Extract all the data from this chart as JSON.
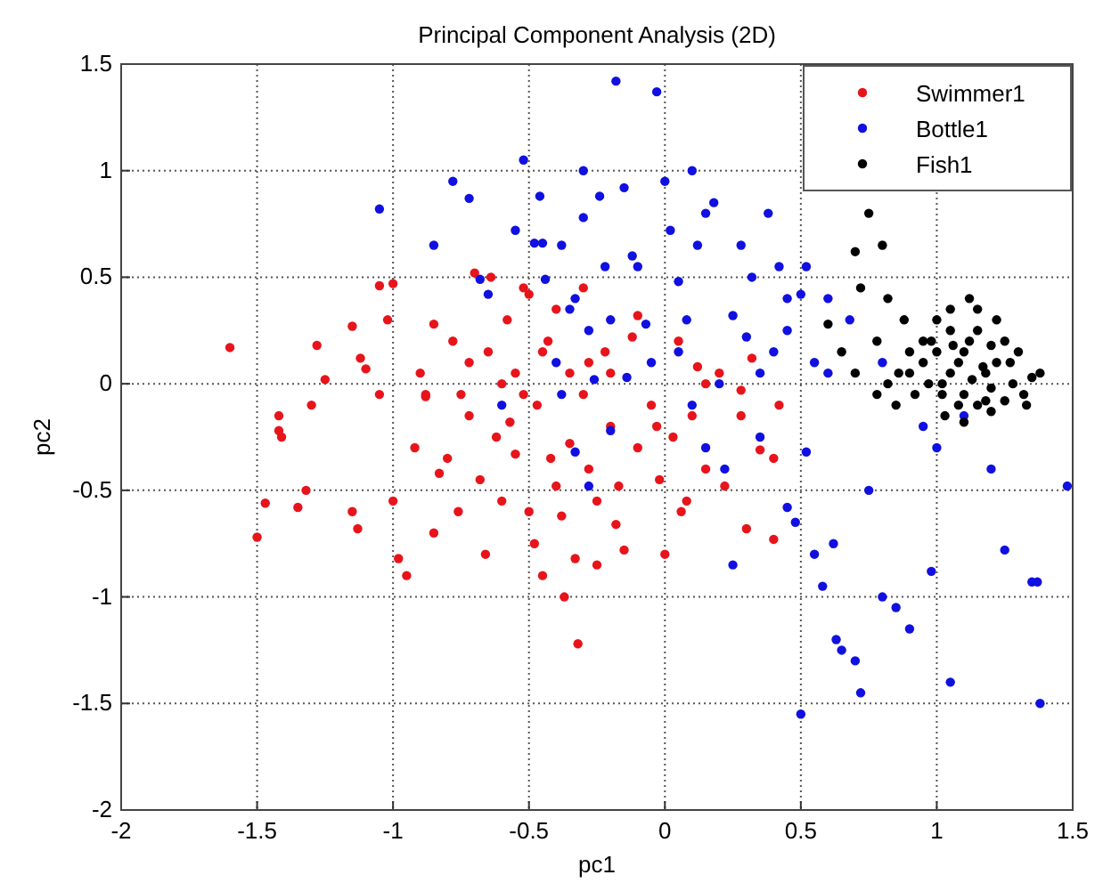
{
  "chart_data": {
    "type": "scatter",
    "title": "Principal Component Analysis (2D)",
    "xlabel": "pc1",
    "ylabel": "pc2",
    "xlim": [
      -2,
      1.5
    ],
    "ylim": [
      -2,
      1.5
    ],
    "xticks": [
      -2,
      -1.5,
      -1,
      -0.5,
      0,
      0.5,
      1,
      1.5
    ],
    "yticks": [
      -2,
      -1.5,
      -1,
      -0.5,
      0,
      0.5,
      1,
      1.5
    ],
    "grid": true,
    "legend": "top right",
    "marker": "circle",
    "series": [
      {
        "name": "Swimmer1",
        "color": "#e8141b",
        "x": [
          -1.6,
          -1.5,
          -1.47,
          -1.42,
          -1.42,
          -1.41,
          -1.35,
          -1.32,
          -1.3,
          -1.28,
          -1.25,
          -1.15,
          -1.15,
          -1.13,
          -1.12,
          -1.1,
          -1.05,
          -1.05,
          -1.02,
          -1,
          -1,
          -0.98,
          -0.95,
          -0.92,
          -0.9,
          -0.88,
          -0.85,
          -0.85,
          -0.83,
          -0.8,
          -0.78,
          -0.76,
          -0.75,
          -0.72,
          -0.72,
          -0.7,
          -0.68,
          -0.66,
          -0.65,
          -0.64,
          -0.62,
          -0.6,
          -0.6,
          -0.58,
          -0.57,
          -0.55,
          -0.52,
          -0.52,
          -0.5,
          -0.5,
          -0.48,
          -0.47,
          -0.45,
          -0.45,
          -0.43,
          -0.42,
          -0.4,
          -0.4,
          -0.38,
          -0.37,
          -0.35,
          -0.35,
          -0.33,
          -0.32,
          -0.3,
          -0.3,
          -0.28,
          -0.25,
          -0.25,
          -0.22,
          -0.2,
          -0.18,
          -0.17,
          -0.15,
          -0.12,
          -0.1,
          -0.1,
          -0.05,
          -0.03,
          -0.02,
          0,
          0.03,
          0.05,
          0.06,
          0.08,
          0.1,
          0.12,
          0.15,
          0.15,
          0.2,
          0.22,
          0.28,
          0.3,
          0.32,
          0.35,
          0.4,
          0.42,
          0.4,
          0.28,
          -0.2,
          -0.28,
          -0.88,
          -0.55
        ],
        "values": [
          0.17,
          -0.72,
          -0.56,
          -0.15,
          -0.22,
          -0.25,
          -0.58,
          -0.5,
          -0.1,
          0.18,
          0.02,
          0.27,
          -0.6,
          -0.68,
          0.12,
          0.07,
          0.46,
          -0.05,
          0.3,
          0.47,
          -0.55,
          -0.82,
          -0.9,
          -0.3,
          0.05,
          -0.05,
          0.28,
          -0.7,
          -0.42,
          -0.35,
          0.2,
          -0.6,
          -0.05,
          -0.15,
          0.1,
          0.52,
          -0.45,
          -0.8,
          0.15,
          0.5,
          -0.25,
          0,
          -0.55,
          0.3,
          -0.18,
          -0.33,
          0.45,
          -0.05,
          0.42,
          -0.6,
          -0.75,
          -0.1,
          0.15,
          -0.9,
          0.2,
          -0.35,
          -0.48,
          0.35,
          -0.62,
          -1,
          0.05,
          -0.28,
          -0.82,
          -1.22,
          -0.05,
          0.45,
          -0.4,
          -0.55,
          -0.85,
          0.15,
          -0.2,
          -0.66,
          -0.48,
          -0.78,
          0.22,
          -0.3,
          0.32,
          -0.1,
          -0.2,
          -0.45,
          -0.8,
          -0.25,
          0.2,
          -0.6,
          -0.55,
          -0.15,
          0.08,
          -0.4,
          0,
          0.05,
          -0.48,
          -0.15,
          -0.68,
          0.12,
          -0.31,
          -0.35,
          -0.1,
          -0.73,
          -0.03,
          0.05,
          0.1,
          -0.06,
          0.05
        ]
      },
      {
        "name": "Bottle1",
        "color": "#1010e0",
        "x": [
          -1.05,
          -0.85,
          -0.78,
          -0.72,
          -0.68,
          -0.65,
          -0.6,
          -0.55,
          -0.52,
          -0.48,
          -0.46,
          -0.45,
          -0.44,
          -0.4,
          -0.38,
          -0.38,
          -0.35,
          -0.33,
          -0.33,
          -0.3,
          -0.3,
          -0.28,
          -0.28,
          -0.26,
          -0.24,
          -0.22,
          -0.2,
          -0.2,
          -0.18,
          -0.15,
          -0.14,
          -0.12,
          -0.1,
          -0.07,
          -0.03,
          0,
          0.02,
          0.05,
          0.05,
          0.08,
          0.1,
          0.12,
          0.15,
          0.15,
          0.18,
          0.2,
          0.22,
          0.25,
          0.25,
          0.28,
          0.3,
          0.32,
          0.35,
          0.38,
          0.4,
          0.42,
          0.45,
          0.45,
          0.48,
          0.5,
          0.52,
          0.55,
          0.55,
          0.58,
          0.6,
          0.62,
          0.63,
          0.65,
          0.7,
          0.72,
          0.5,
          0.75,
          0.8,
          0.85,
          0.9,
          0.98,
          1,
          1.05,
          1.1,
          1.2,
          1.25,
          1.35,
          1.37,
          1.38,
          1.48,
          0.95,
          0.6,
          0.8,
          0.35,
          0.1,
          -0.05,
          0.45,
          0.68,
          0.52
        ],
        "values": [
          0.82,
          0.65,
          0.95,
          0.87,
          0.49,
          0.42,
          -0.1,
          0.72,
          1.05,
          0.66,
          0.88,
          0.66,
          0.49,
          0.1,
          -0.05,
          0.65,
          0.35,
          0.4,
          -0.32,
          0.78,
          1,
          0.25,
          -0.48,
          0.02,
          0.88,
          0.55,
          0.3,
          -0.22,
          1.42,
          0.92,
          0.03,
          0.6,
          0.55,
          0.28,
          1.37,
          0.95,
          0.72,
          0.48,
          0.15,
          0.3,
          1,
          0.65,
          0.8,
          -0.3,
          0.85,
          0,
          -0.4,
          0.32,
          -0.85,
          0.65,
          0.22,
          0.5,
          -0.25,
          0.8,
          0.15,
          0.55,
          0.4,
          -0.58,
          -0.65,
          0.42,
          0.55,
          0.1,
          -0.8,
          -0.95,
          0.4,
          -0.75,
          -1.2,
          -1.25,
          -1.3,
          -1.45,
          -1.55,
          -0.5,
          -1,
          -1.05,
          -1.15,
          -0.88,
          -0.3,
          -1.4,
          -0.15,
          -0.4,
          -0.78,
          -0.93,
          -0.93,
          -1.5,
          -0.48,
          -0.2,
          0.05,
          0.1,
          0.05,
          -0.1,
          0.1,
          0.25,
          0.3,
          -0.32
        ]
      },
      {
        "name": "Fish1",
        "color": "#000000",
        "x": [
          0.7,
          0.75,
          0.8,
          0.82,
          0.72,
          0.6,
          0.65,
          0.7,
          0.78,
          0.82,
          0.85,
          0.9,
          0.92,
          0.95,
          0.98,
          1,
          1.02,
          1.03,
          1.05,
          1.05,
          1.08,
          1.1,
          1.1,
          1.12,
          1.13,
          1.15,
          1.15,
          1.18,
          1.2,
          1.2,
          1.22,
          1.22,
          1.25,
          1.25,
          1.28,
          1.3,
          1.32,
          1.35,
          1.38,
          1.33,
          1,
          1.05,
          0.97,
          1.08,
          1.12,
          1.18,
          0.9,
          0.88,
          1.15,
          1.02,
          1.06,
          0.95,
          1.2,
          1.27,
          0.78,
          0.86,
          1.1,
          1.17
        ],
        "values": [
          0.62,
          0.8,
          0.65,
          0.4,
          0.45,
          0.28,
          0.15,
          0.05,
          0.2,
          0,
          -0.1,
          0.05,
          -0.05,
          0.1,
          0.2,
          0.3,
          0,
          -0.15,
          0.25,
          0.35,
          0.1,
          0.15,
          -0.05,
          0.4,
          0.02,
          0.25,
          -0.1,
          0.05,
          0.18,
          -0.02,
          0.3,
          0.1,
          -0.08,
          0.2,
          0,
          0.15,
          -0.05,
          0.03,
          0.05,
          -0.1,
          0.15,
          0.05,
          0,
          -0.1,
          0.2,
          -0.08,
          0.15,
          0.3,
          0.35,
          -0.05,
          0.18,
          0.2,
          -0.13,
          0.1,
          -0.05,
          0.05,
          -0.18,
          0.08
        ]
      }
    ]
  }
}
